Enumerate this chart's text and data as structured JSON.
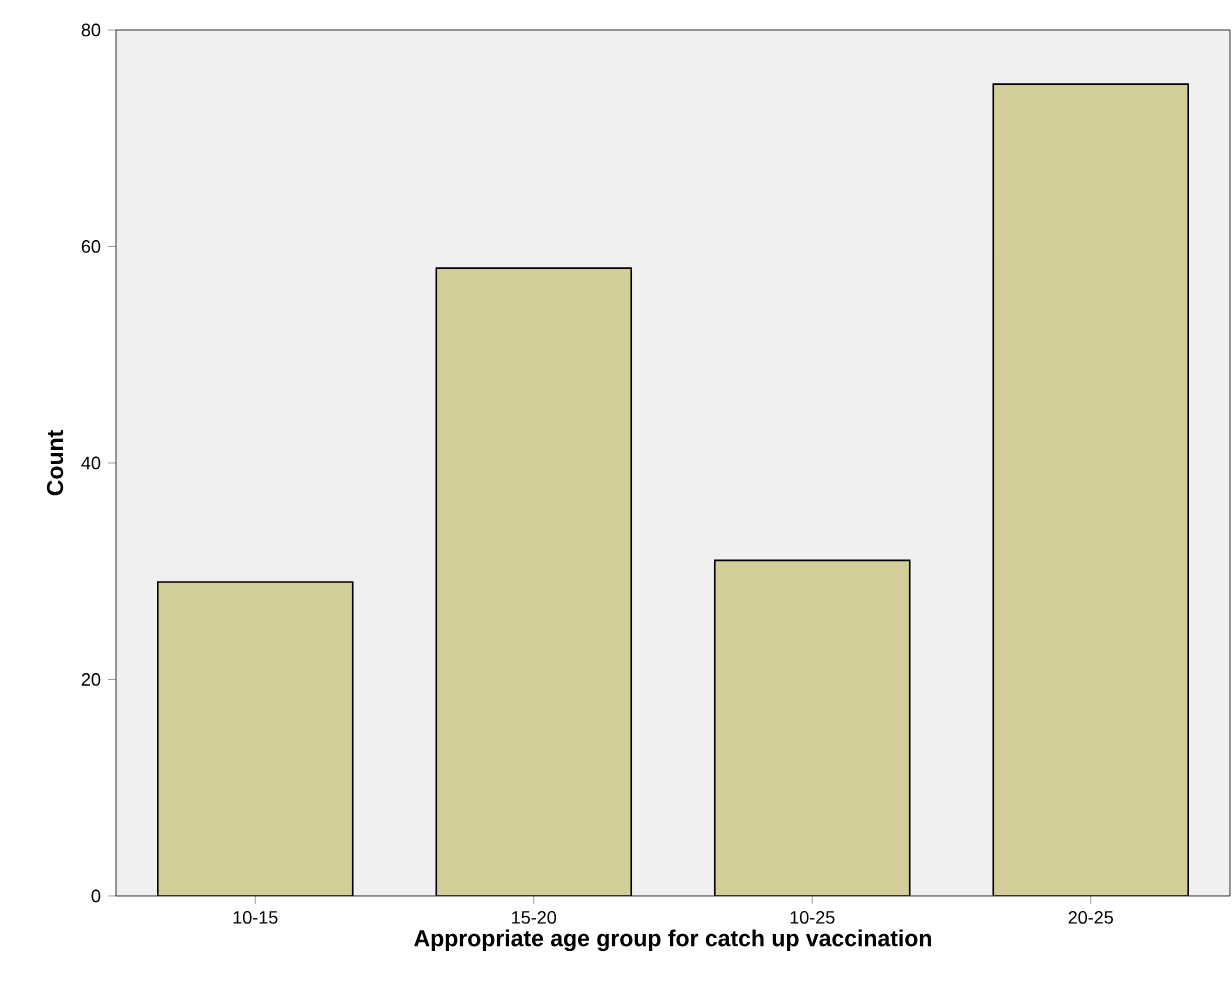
{
  "chart_data": {
    "type": "bar",
    "xlabel": "Appropriate age group for catch up vaccination",
    "ylabel": "Count",
    "categories": [
      "10-15",
      "15-20",
      "10-25",
      "20-25"
    ],
    "values": [
      29,
      58,
      31,
      75
    ],
    "color": "#d3ce97",
    "ylim": [
      0,
      80
    ],
    "yticks": [
      0,
      20,
      40,
      60,
      80
    ],
    "grid": false
  }
}
